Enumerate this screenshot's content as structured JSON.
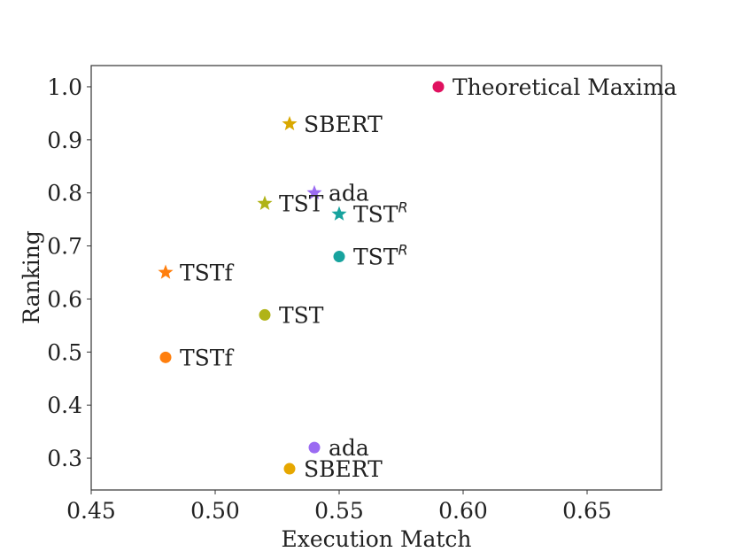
{
  "chart_data": {
    "type": "scatter",
    "title": "",
    "xlabel": "Execution Match",
    "ylabel": "Ranking",
    "xlim": [
      0.45,
      0.68
    ],
    "ylim": [
      0.24,
      1.04
    ],
    "xticks": [
      "0.45",
      "0.50",
      "0.55",
      "0.60",
      "0.65"
    ],
    "yticks": [
      "0.3",
      "0.4",
      "0.5",
      "0.6",
      "0.7",
      "0.8",
      "0.9",
      "1.0"
    ],
    "grid": false,
    "legend": "none",
    "points": [
      {
        "label": "Theoretical Maxima",
        "x": 0.59,
        "y": 1.0,
        "marker": "circle",
        "color": "#e0115f"
      },
      {
        "label": "SBERT",
        "x": 0.53,
        "y": 0.93,
        "marker": "star",
        "color": "#d9a800"
      },
      {
        "label": "ada",
        "x": 0.54,
        "y": 0.8,
        "marker": "star",
        "color": "#9b6bf2"
      },
      {
        "label": "TST",
        "x": 0.52,
        "y": 0.78,
        "marker": "star",
        "color": "#b0b317"
      },
      {
        "label": "TST",
        "sup": "R",
        "x": 0.55,
        "y": 0.76,
        "marker": "star",
        "color": "#17a39e"
      },
      {
        "label": "TST",
        "sup": "R",
        "x": 0.55,
        "y": 0.68,
        "marker": "circle",
        "color": "#17a39e"
      },
      {
        "label": "TSTf",
        "x": 0.48,
        "y": 0.65,
        "marker": "star",
        "color": "#ff7f0e"
      },
      {
        "label": "TST",
        "x": 0.52,
        "y": 0.57,
        "marker": "circle",
        "color": "#b0b317"
      },
      {
        "label": "TSTf",
        "x": 0.48,
        "y": 0.49,
        "marker": "circle",
        "color": "#ff7f0e"
      },
      {
        "label": "ada",
        "x": 0.54,
        "y": 0.32,
        "marker": "circle",
        "color": "#9b6bf2"
      },
      {
        "label": "SBERT",
        "x": 0.53,
        "y": 0.28,
        "marker": "circle",
        "color": "#e6a700"
      }
    ]
  }
}
